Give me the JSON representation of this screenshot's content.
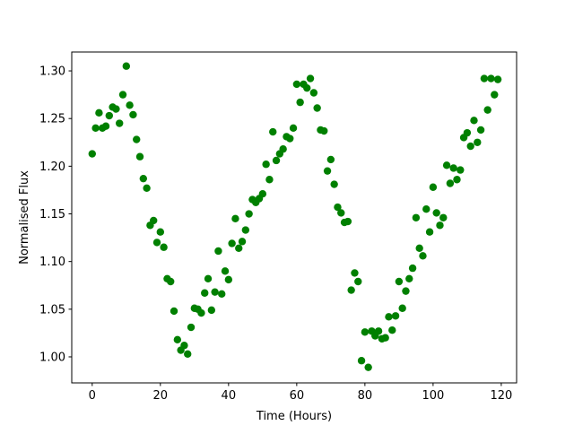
{
  "chart_data": {
    "type": "scatter",
    "xlabel": "Time (Hours)",
    "ylabel": "Normalised Flux",
    "color": "#008000",
    "x": [
      0,
      1,
      2,
      3,
      4,
      5,
      6,
      7,
      8,
      9,
      10,
      11,
      12,
      13,
      14,
      15,
      16,
      17,
      18,
      19,
      20,
      21,
      22,
      23,
      24,
      25,
      26,
      27,
      28,
      29,
      30,
      31,
      32,
      33,
      34,
      35,
      36,
      37,
      38,
      39,
      40,
      41,
      42,
      43,
      44,
      45,
      46,
      47,
      48,
      49,
      50,
      51,
      52,
      53,
      54,
      55,
      56,
      57,
      58,
      59,
      60,
      61,
      62,
      63,
      64,
      65,
      66,
      67,
      68,
      69,
      70,
      71,
      72,
      73,
      74,
      75,
      76,
      77,
      78,
      79,
      80,
      81,
      82,
      83,
      84,
      85,
      86,
      87,
      88,
      89,
      90,
      91,
      92,
      93,
      94,
      95,
      96,
      97,
      98,
      99,
      100,
      101,
      102,
      103,
      104,
      105,
      106,
      107,
      108,
      109,
      110,
      111,
      112,
      113,
      114,
      115,
      116,
      117,
      118,
      119
    ],
    "values": [
      1.213,
      1.24,
      1.256,
      1.24,
      1.242,
      1.253,
      1.262,
      1.26,
      1.245,
      1.275,
      1.305,
      1.264,
      1.254,
      1.228,
      1.21,
      1.187,
      1.177,
      1.138,
      1.143,
      1.12,
      1.131,
      1.115,
      1.082,
      1.079,
      1.048,
      1.018,
      1.007,
      1.012,
      1.003,
      1.031,
      1.051,
      1.05,
      1.046,
      1.067,
      1.082,
      1.049,
      1.068,
      1.111,
      1.066,
      1.09,
      1.081,
      1.119,
      1.145,
      1.114,
      1.121,
      1.133,
      1.15,
      1.165,
      1.162,
      1.166,
      1.171,
      1.202,
      1.186,
      1.236,
      1.206,
      1.213,
      1.218,
      1.231,
      1.229,
      1.24,
      1.286,
      1.267,
      1.286,
      1.282,
      1.292,
      1.277,
      1.261,
      1.238,
      1.237,
      1.195,
      1.207,
      1.181,
      1.157,
      1.151,
      1.141,
      1.142,
      1.07,
      1.088,
      1.079,
      0.996,
      1.026,
      0.989,
      1.027,
      1.022,
      1.027,
      1.019,
      1.02,
      1.042,
      1.028,
      1.043,
      1.079,
      1.051,
      1.069,
      1.082,
      1.093,
      1.146,
      1.114,
      1.106,
      1.155,
      1.131,
      1.178,
      1.151,
      1.138,
      1.146,
      1.201,
      1.182,
      1.198,
      1.186,
      1.196,
      1.23,
      1.235,
      1.221,
      1.248,
      1.225,
      1.238,
      1.292,
      1.259,
      1.292,
      1.275,
      1.291
    ],
    "xlim": [
      -6,
      124.5
    ],
    "ylim": [
      0.9727,
      1.3198
    ],
    "xticks": [
      0,
      20,
      40,
      60,
      80,
      100,
      120
    ],
    "yticks": [
      {
        "value": 1.0,
        "label": "1.00"
      },
      {
        "value": 1.05,
        "label": "1.05"
      },
      {
        "value": 1.1,
        "label": "1.10"
      },
      {
        "value": 1.15,
        "label": "1.15"
      },
      {
        "value": 1.2,
        "label": "1.20"
      },
      {
        "value": 1.25,
        "label": "1.25"
      },
      {
        "value": 1.3,
        "label": "1.30"
      }
    ]
  }
}
